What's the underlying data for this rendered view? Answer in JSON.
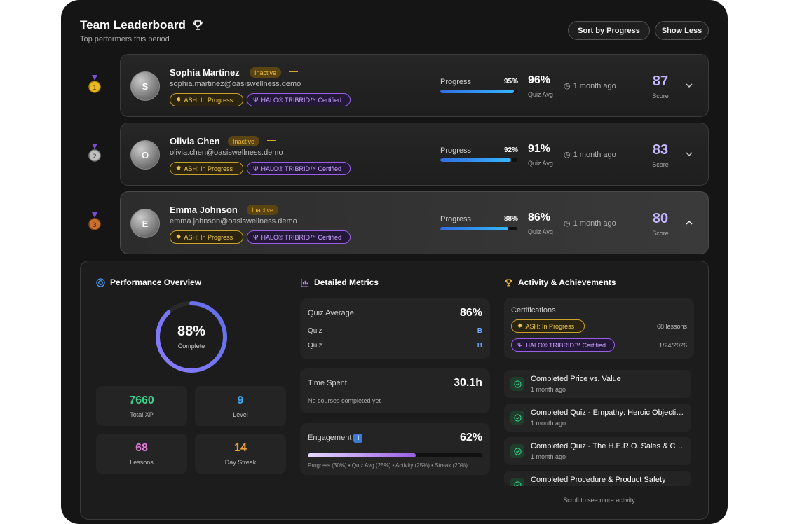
{
  "header": {
    "title": "Team Leaderboard",
    "subtitle": "Top performers this period",
    "sort_button": "Sort by Progress",
    "less_button": "Show Less"
  },
  "rows": [
    {
      "rank": "1",
      "initial": "S",
      "name": "Sophia Martinez",
      "status": "Inactive",
      "dash": "—",
      "email": "sophia.martinez@oasiswellness.demo",
      "tag_ash": "ASH: In Progress",
      "tag_halo": "HALO® TRIBRID™ Certified",
      "progress_label": "Progress",
      "progress_text": "95%",
      "progress": 0.95,
      "quiz_avg": "96%",
      "quiz_label": "Quiz Avg",
      "time": "1 month ago",
      "score": "87",
      "score_label": "Score"
    },
    {
      "rank": "2",
      "initial": "O",
      "name": "Olivia Chen",
      "status": "Inactive",
      "dash": "—",
      "email": "olivia.chen@oasiswellness.demo",
      "tag_ash": "ASH: In Progress",
      "tag_halo": "HALO® TRIBRID™ Certified",
      "progress_label": "Progress",
      "progress_text": "92%",
      "progress": 0.92,
      "quiz_avg": "91%",
      "quiz_label": "Quiz Avg",
      "time": "1 month ago",
      "score": "83",
      "score_label": "Score"
    },
    {
      "rank": "3",
      "initial": "E",
      "name": "Emma Johnson",
      "status": "Inactive",
      "dash": "—",
      "email": "emma.johnson@oasiswellness.demo",
      "tag_ash": "ASH: In Progress",
      "tag_halo": "HALO® TRIBRID™ Certified",
      "progress_label": "Progress",
      "progress_text": "88%",
      "progress": 0.88,
      "quiz_avg": "86%",
      "quiz_label": "Quiz Avg",
      "time": "1 month ago",
      "score": "80",
      "score_label": "Score"
    }
  ],
  "performance": {
    "title": "Performance Overview",
    "complete_value": "88%",
    "complete_fraction": 0.88,
    "complete_label": "Complete",
    "stats": [
      {
        "value": "7660",
        "label": "Total XP",
        "color": "#3ccf8e"
      },
      {
        "value": "9",
        "label": "Level",
        "color": "#3aa7f0"
      },
      {
        "value": "68",
        "label": "Lessons",
        "color": "#e07ad8"
      },
      {
        "value": "14",
        "label": "Day Streak",
        "color": "#f0a23a"
      }
    ]
  },
  "metrics": {
    "title": "Detailed Metrics",
    "quiz_avg_label": "Quiz Average",
    "quiz_avg_value": "86%",
    "quizzes": [
      {
        "label": "Quiz",
        "grade": "B"
      },
      {
        "label": "Quiz",
        "grade": "B"
      }
    ],
    "time_label": "Time Spent",
    "time_value": "30.1h",
    "time_note": "No courses completed yet",
    "engagement_label": "Engagement",
    "engagement_info": "i",
    "engagement_value": "62%",
    "engagement_fraction": 0.62,
    "engagement_note": "Progress (30%) • Quiz Avg (25%) • Activity (25%) • Streak (20%)"
  },
  "activity": {
    "title": "Activity & Achievements",
    "cert_title": "Certifications",
    "cert_ash": "ASH: In Progress",
    "cert_ash_meta": "68 lessons",
    "cert_halo": "HALO® TRIBRID™ Certified",
    "cert_halo_meta": "1/24/2026",
    "items": [
      {
        "title": "Completed Price vs. Value",
        "time": "1 month ago"
      },
      {
        "title": "Completed Quiz - Empathy: Heroic Objections",
        "time": "1 month ago"
      },
      {
        "title": "Completed Quiz - The H.E.R.O. Sales & Consultation",
        "time": "1 month ago"
      },
      {
        "title": "Completed Procedure & Product Safety",
        "time": ""
      }
    ],
    "scroll_note": "Scroll to see more activity"
  }
}
